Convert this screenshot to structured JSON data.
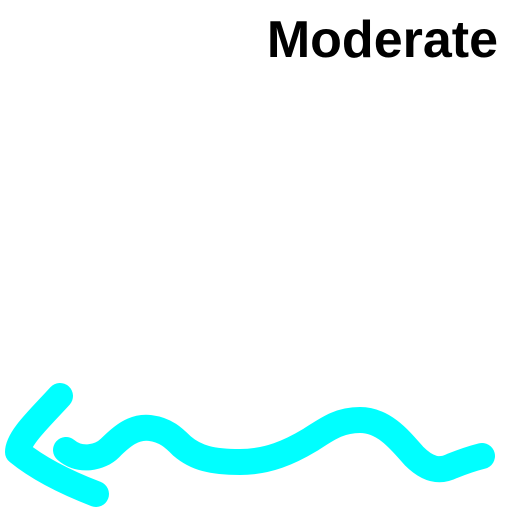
{
  "label": {
    "text": "Moderate"
  },
  "drawing": {
    "icon": "wavy-left-arrow-icon",
    "stroke_color": "#00FFFF"
  }
}
